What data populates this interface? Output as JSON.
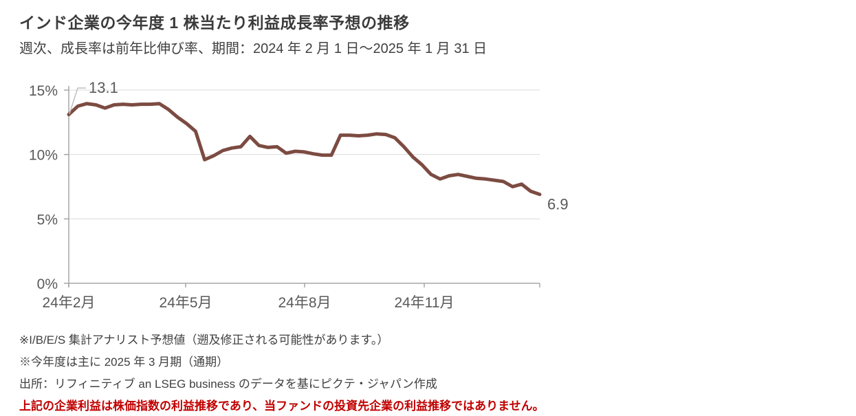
{
  "header": {
    "title": "インド企業の今年度 1 株当たり利益成長率予想の推移",
    "subtitle": "週次、成長率は前年比伸び率、期間：2024 年 2 月 1 日～2025 年 1 月 31 日"
  },
  "footnotes": {
    "line1": "※I/B/E/S 集計アナリスト予想値（遡及修正される可能性があります。）",
    "line2": "※今年度は主に 2025 年 3 月期（通期）",
    "line3": "出所：リフィニティブ  an LSEG business のデータを基にピクテ・ジャパン作成",
    "line4": "上記の企業利益は株価指数の利益推移であり、当ファンドの投資先企業の利益推移ではありません。"
  },
  "colors": {
    "line": "#7C4B41",
    "grid": "#D9D9D9",
    "axis": "#A6A6A6",
    "tick_label": "#595959",
    "annotation": "#595959",
    "leader": "#BFBFBF",
    "title_text": "#3B3B3B",
    "body_text": "#404040",
    "warning_red": "#C00000"
  },
  "chart_data": {
    "type": "line",
    "title": "インド企業の今年度 1 株当たり利益成長率予想の推移",
    "subtitle": "週次、成長率は前年比伸び率、期間：2024 年 2 月 1 日～2025 年 1 月 31 日",
    "x_unit": "週（2024年2月1日～2025年1月31日）",
    "ylabel": "成長率（前年比伸び率、%）",
    "ylim": [
      0,
      15
    ],
    "grid": true,
    "legend": "none",
    "values": [
      13.1,
      13.75,
      13.95,
      13.85,
      13.6,
      13.85,
      13.9,
      13.85,
      13.9,
      13.9,
      13.95,
      13.5,
      12.9,
      12.4,
      11.8,
      9.6,
      9.9,
      10.3,
      10.5,
      10.6,
      11.4,
      10.7,
      10.55,
      10.6,
      10.1,
      10.25,
      10.2,
      10.05,
      9.95,
      9.95,
      11.5,
      11.5,
      11.45,
      11.5,
      11.6,
      11.55,
      11.3,
      10.6,
      9.8,
      9.2,
      8.45,
      8.1,
      8.35,
      8.45,
      8.3,
      8.15,
      8.1,
      8.0,
      7.9,
      7.5,
      7.7,
      7.15,
      6.9
    ],
    "yticks": [
      {
        "value": 0,
        "label": "0%"
      },
      {
        "value": 5,
        "label": "5%"
      },
      {
        "value": 10,
        "label": "10%"
      },
      {
        "value": 15,
        "label": "15%"
      }
    ],
    "xticks": [
      {
        "week": 0,
        "label": "24年2月"
      },
      {
        "week": 12.91,
        "label": "24年5月"
      },
      {
        "week": 26.04,
        "label": "24年8月"
      },
      {
        "week": 39.25,
        "label": "24年11月"
      }
    ],
    "annotations": {
      "first_point_label": "13.1",
      "last_point_label": "6.9"
    }
  }
}
